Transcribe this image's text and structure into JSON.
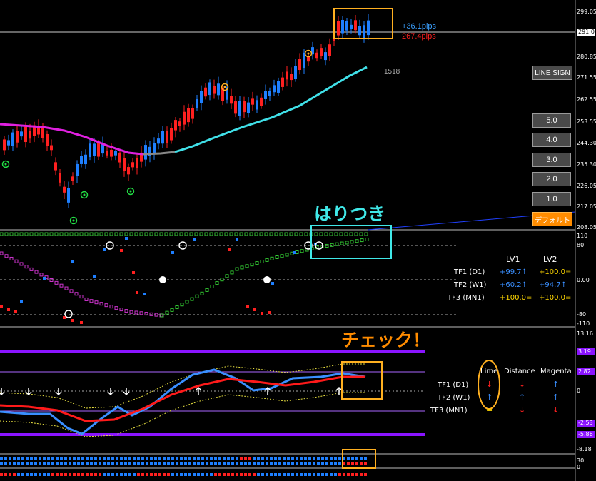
{
  "price_panel": {
    "pips_up": "+36.1pips",
    "pips_down": "267.4pips",
    "bar_count": "1518",
    "axis_ticks": [
      "299.05",
      "291.05",
      "280.85",
      "271.55",
      "262.55",
      "253.55",
      "244.30",
      "235.30",
      "226.05",
      "217.05",
      "208.05"
    ],
    "line_sign_label": "LINE SIGN",
    "level_buttons": [
      "5.0",
      "4.0",
      "3.0",
      "2.0",
      "1.0"
    ],
    "default_button": "デフォルト"
  },
  "osc1_panel": {
    "annotation": "はりつき",
    "axis_ticks": [
      "110",
      "80",
      "0.00",
      "-80",
      "-110"
    ],
    "headers": {
      "lv1": "LV1",
      "lv2": "LV2"
    },
    "rows": [
      {
        "tf": "TF1 (D1)",
        "lv1": "+99.7↑",
        "lv2": "+100.0="
      },
      {
        "tf": "TF2 (W1)",
        "lv1": "+60.2↑",
        "lv2": "+94.7↑"
      },
      {
        "tf": "TF3 (MN1)",
        "lv1": "+100.0=",
        "lv2": "+100.0="
      }
    ]
  },
  "osc2_panel": {
    "annotation": "チェック！",
    "axis_ticks": [
      "13.16",
      "-8.18"
    ],
    "tags": [
      "3.19",
      "2.82",
      "0",
      "-2.53",
      "-5.86"
    ],
    "headers": {
      "lime": "Lime",
      "distance": "Distance",
      "magenta": "Magenta"
    },
    "rows": [
      {
        "tf": "TF1 (D1)",
        "lime": "↓",
        "distance": "↓",
        "magenta": "↑"
      },
      {
        "tf": "TF2 (W1)",
        "lime": "↑",
        "distance": "↑",
        "magenta": "↑"
      },
      {
        "tf": "TF3 (MN1)",
        "lime": "=",
        "distance": "↓",
        "magenta": "↓"
      }
    ]
  },
  "strip_panel": {
    "axis_ticks": [
      "30",
      "0"
    ]
  },
  "colors": {
    "accent_orange": "#ff8c00",
    "cyan": "#40e0e8",
    "magenta": "#e020e0",
    "blue": "#1e7fff",
    "red": "#ff2020",
    "violet": "#8a14ff"
  }
}
